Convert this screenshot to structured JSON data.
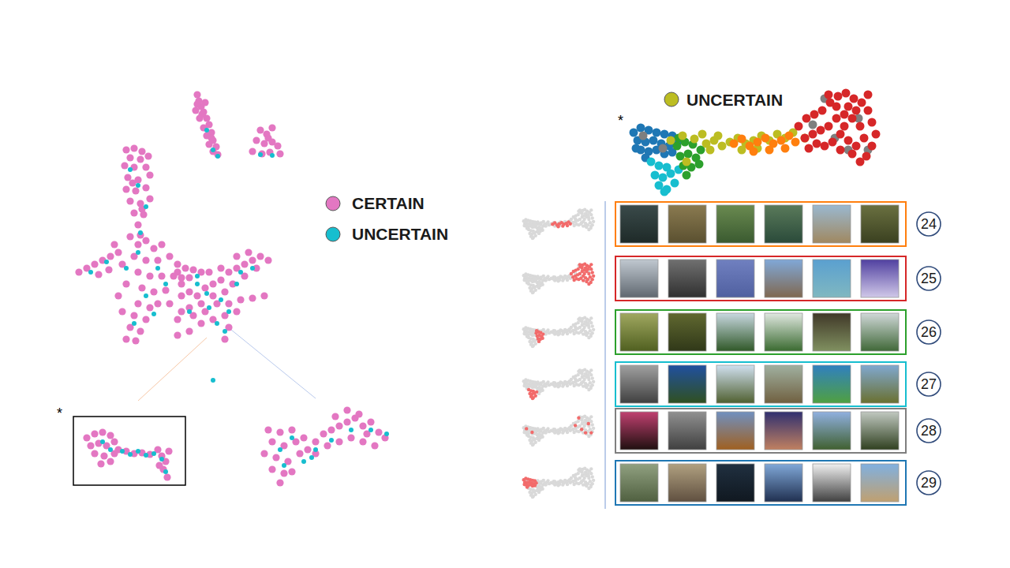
{
  "chart_data": [
    {
      "type": "scatter",
      "xlim": [
        80,
        500
      ],
      "ylim": [
        80,
        620
      ],
      "tick_labels": false,
      "grid": false,
      "legend": "right",
      "annotations": [
        "*"
      ],
      "series": [
        {
          "name": "CERTAIN",
          "color": "#e377c2",
          "x": [
            250,
            252,
            255,
            248,
            258,
            262,
            253,
            265,
            258,
            268,
            262,
            270,
            265,
            274,
            270,
            276,
            260,
            250,
            256,
            268,
            330,
            338,
            345,
            325,
            335,
            345,
            352,
            320,
            332,
            342,
            355,
            340,
            160,
            170,
            180,
            165,
            178,
            188,
            158,
            170,
            185,
            162,
            175,
            190,
            160,
            172,
            185,
            165,
            178,
            190,
            170,
            182,
            175,
            178,
            168,
            180,
            100,
            110,
            120,
            130,
            140,
            125,
            138,
            150,
            155,
            145,
            165,
            175,
            185,
            195,
            205,
            170,
            185,
            200,
            215,
            225,
            175,
            190,
            205,
            220,
            180,
            195,
            210,
            175,
            190,
            170,
            185,
            165,
            178,
            160,
            172,
            200,
            215,
            230,
            160,
            150,
            155,
            225,
            235,
            245,
            255,
            240,
            230,
            230,
            240,
            250,
            260,
            270,
            280,
            290,
            300,
            310,
            320,
            330,
            340,
            325,
            310,
            295,
            285,
            270,
            255,
            240,
            230,
            225,
            245,
            260,
            275,
            290,
            305,
            320,
            335,
            300,
            285,
            270,
            290,
            285,
            255,
            240,
            225,
            265,
            280,
            300,
            315,
            110,
            120,
            130,
            140,
            115,
            125,
            135,
            145,
            120,
            132,
            145,
            128,
            140,
            150,
            160,
            170,
            180,
            190,
            200,
            205,
            210,
            207,
            212,
            202,
            214,
            340,
            355,
            370,
            345,
            360,
            375,
            385,
            335,
            350,
            365,
            380,
            345,
            360,
            355,
            370,
            390,
            400,
            410,
            420,
            430,
            440,
            450,
            460,
            470,
            480,
            488,
            475,
            460,
            445,
            430,
            415,
            400,
            440,
            455,
            425,
            465
          ],
          "values": [
            600,
            592,
            585,
            580,
            578,
            570,
            570,
            562,
            558,
            552,
            548,
            542,
            537,
            534,
            528,
            524,
            590,
            588,
            575,
            545,
            555,
            550,
            558,
            542,
            538,
            540,
            535,
            528,
            525,
            527,
            525,
            545,
            530,
            532,
            528,
            520,
            518,
            522,
            510,
            508,
            508,
            495,
            492,
            498,
            480,
            478,
            482,
            465,
            462,
            468,
            450,
            448,
            435,
            422,
            488,
            455,
            375,
            380,
            385,
            390,
            395,
            372,
            378,
            400,
            385,
            410,
            420,
            410,
            415,
            405,
            410,
            395,
            390,
            390,
            395,
            385,
            375,
            370,
            370,
            370,
            355,
            350,
            352,
            335,
            330,
            320,
            315,
            305,
            300,
            290,
            288,
            335,
            335,
            360,
            360,
            345,
            325,
            375,
            380,
            378,
            375,
            368,
            368,
            345,
            350,
            345,
            355,
            360,
            365,
            375,
            380,
            385,
            390,
            395,
            390,
            380,
            370,
            360,
            350,
            345,
            335,
            330,
            325,
            315,
            320,
            325,
            335,
            335,
            340,
            342,
            345,
            325,
            320,
            315,
            305,
            290,
            310,
            300,
            295,
            375,
            380,
            395,
            400,
            165,
            170,
            172,
            168,
            155,
            158,
            155,
            160,
            145,
            142,
            145,
            132,
            135,
            150,
            148,
            145,
            146,
            144,
            150,
            142,
            135,
            125,
            115,
            130,
            148,
            175,
            172,
            175,
            160,
            155,
            160,
            165,
            145,
            140,
            135,
            145,
            125,
            120,
            108,
            122,
            150,
            160,
            170,
            175,
            180,
            185,
            190,
            180,
            185,
            172,
            165,
            155,
            160,
            165,
            160,
            155,
            145,
            200,
            195,
            192,
            170
          ]
        },
        {
          "name": "UNCERTAIN",
          "color": "#17becf",
          "x": [
            262,
            270,
            276,
            330,
            345,
            175,
            185,
            178,
            165,
            115,
            135,
            160,
            175,
            200,
            185,
            170,
            210,
            195,
            250,
            262,
            280,
            300,
            275,
            290,
            240,
            320,
            285,
            265,
            305,
            250,
            140,
            155,
            165,
            175,
            185,
            195,
            205,
            210,
            130,
            385,
            400,
            355,
            420,
            445,
            470,
            370,
            490,
            395,
            360,
            270
          ],
          "values": [
            555,
            530,
            522,
            524,
            523,
            485,
            458,
            425,
            505,
            375,
            388,
            380,
            400,
            380,
            345,
            310,
            360,
            322,
            370,
            348,
            340,
            360,
            310,
            325,
            325,
            380,
            300,
            330,
            375,
            360,
            150,
            148,
            144,
            148,
            143,
            145,
            138,
            122,
            160,
            135,
            150,
            150,
            162,
            175,
            175,
            165,
            170,
            140,
            130,
            238
          ]
        }
      ]
    },
    {
      "type": "scatter",
      "xlim": [
        790,
        1120
      ],
      "ylim": [
        70,
        215
      ],
      "tick_labels": false,
      "grid": false,
      "legend": "top",
      "annotations": [
        "*"
      ],
      "rows": [
        24,
        25,
        26,
        27,
        28,
        29
      ],
      "series": [
        {
          "cluster": 29,
          "color": "#1f77b4",
          "x": [
            803,
            812,
            822,
            832,
            842,
            852,
            808,
            818,
            828,
            838,
            848,
            858,
            812,
            822,
            832,
            842,
            852,
            818,
            806
          ],
          "values": [
            152,
            158,
            155,
            152,
            150,
            148,
            142,
            140,
            142,
            138,
            135,
            138,
            130,
            128,
            130,
            125,
            127,
            120,
            132
          ]
        },
        {
          "cluster": 27,
          "color": "#17becf",
          "x": [
            825,
            835,
            845,
            830,
            840,
            850,
            835,
            845,
            855,
            842,
            860
          ],
          "values": [
            115,
            110,
            108,
            98,
            95,
            100,
            85,
            80,
            88,
            77,
            105
          ]
        },
        {
          "cluster": 26,
          "color": "#2ca02c",
          "x": [
            858,
            868,
            878,
            888,
            862,
            872,
            882,
            866,
            876,
            886,
            870,
            860
          ],
          "values": [
            135,
            140,
            137,
            130,
            122,
            125,
            120,
            110,
            108,
            112,
            98,
            145
          ]
        },
        {
          "name": "UNCERTAIN",
          "color": "#bcbd22",
          "x": [
            850,
            865,
            880,
            895,
            905,
            915,
            925,
            935,
            945,
            955,
            965,
            975,
            985,
            995,
            890,
            900,
            940,
            960,
            1005,
            870,
            910,
            1020
          ],
          "values": [
            142,
            148,
            144,
            138,
            142,
            135,
            140,
            145,
            138,
            142,
            148,
            142,
            150,
            145,
            150,
            130,
            130,
            132,
            152,
            115,
            148,
            145
          ]
        },
        {
          "cluster": 24,
          "color": "#ff7f0e",
          "x": [
            930,
            940,
            950,
            960,
            970,
            980,
            990,
            1000,
            1008,
            975,
            995,
            955
          ],
          "values": [
            138,
            144,
            135,
            140,
            145,
            138,
            142,
            148,
            140,
            130,
            132,
            128
          ]
        },
        {
          "cluster": 28,
          "color": "#7f7f7f",
          "x": [
            1030,
            1058,
            1088,
            1075,
            815,
            840,
            1045,
            1100
          ],
          "values": [
            162,
            145,
            170,
            130,
            148,
            132,
            195,
            130
          ]
        },
        {
          "cluster": 25,
          "color": "#d62728",
          "x": [
            1012,
            1022,
            1032,
            1042,
            1052,
            1062,
            1072,
            1082,
            1092,
            1100,
            1105,
            1110,
            1105,
            1098,
            1090,
            1020,
            1030,
            1040,
            1050,
            1060,
            1070,
            1080,
            1090,
            1095,
            1085,
            1075,
            1065,
            1055,
            1045,
            1035,
            1060,
            1075,
            1085,
            1070,
            1080,
            1050,
            1065,
            1025,
            1100
          ],
          "values": [
            160,
            170,
            175,
            180,
            190,
            198,
            202,
            195,
            190,
            180,
            165,
            150,
            135,
            122,
            115,
            145,
            150,
            155,
            160,
            170,
            175,
            170,
            160,
            145,
            135,
            142,
            150,
            140,
            135,
            138,
            185,
            185,
            180,
            160,
            125,
            200,
            130,
            132,
            200
          ]
        }
      ]
    }
  ]
}
